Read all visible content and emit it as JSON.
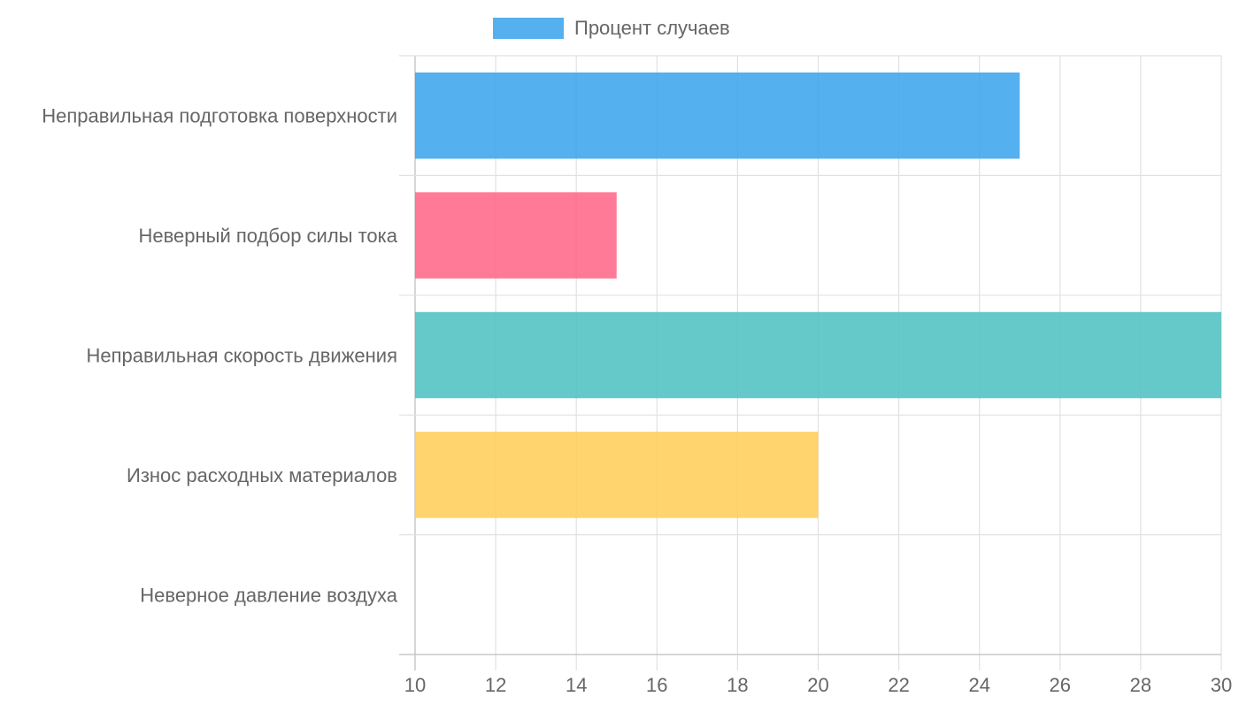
{
  "chart_data": {
    "type": "bar",
    "orientation": "horizontal",
    "categories": [
      "Неправильная подготовка поверхности",
      "Неверный подбор силы тока",
      "Неправильная скорость движения",
      "Износ расходных материалов",
      "Неверное давление воздуха"
    ],
    "series": [
      {
        "name": "Процент случаев",
        "values": [
          25,
          15,
          30,
          20,
          10
        ]
      }
    ],
    "bar_colors": [
      "#36a2eb",
      "#ff6384",
      "#4bc0c0",
      "#ffcd56",
      "#9966ff"
    ],
    "xlim": [
      10,
      30
    ],
    "x_ticks": [
      10,
      12,
      14,
      16,
      18,
      20,
      22,
      24,
      26,
      28,
      30
    ],
    "grid": true,
    "legend_position": "top",
    "title": "",
    "xlabel": "",
    "ylabel": ""
  }
}
